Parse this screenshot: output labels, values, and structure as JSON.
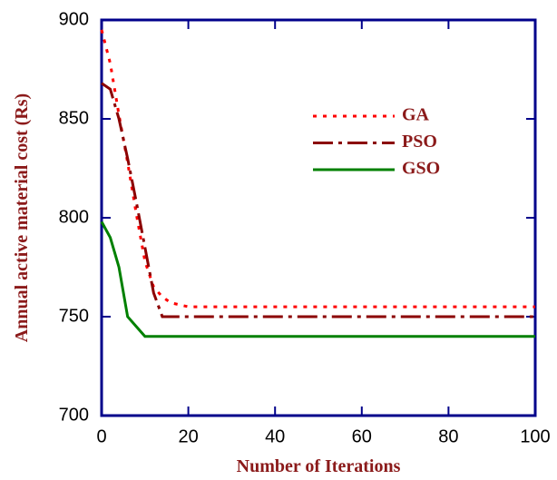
{
  "chart_data": {
    "type": "line",
    "x_label": "Number of Iterations",
    "y_label": "Annual active material cost (Rs)",
    "x": [
      0,
      2,
      4,
      6,
      8,
      10,
      12,
      14,
      16,
      20,
      100
    ],
    "series": [
      {
        "name": "GA",
        "color": "#ff0000",
        "dash": "dotted",
        "values": [
          895,
          878,
          852,
          828,
          802,
          778,
          765,
          760,
          757,
          755,
          755
        ]
      },
      {
        "name": "PSO",
        "color": "#8b0000",
        "dash": "dashdot",
        "values": [
          868,
          865,
          850,
          830,
          808,
          785,
          762,
          750,
          750,
          750,
          750
        ]
      },
      {
        "name": "GSO",
        "color": "#008000",
        "dash": "solid",
        "values": [
          798,
          790,
          775,
          750,
          745,
          740,
          740,
          740,
          740,
          740,
          740
        ]
      }
    ],
    "xlim": [
      0,
      100
    ],
    "xticks": [
      0,
      20,
      40,
      60,
      80,
      100
    ],
    "ylim": [
      700,
      900
    ],
    "yticks": [
      700,
      750,
      800,
      850,
      900
    ],
    "grid": false
  }
}
